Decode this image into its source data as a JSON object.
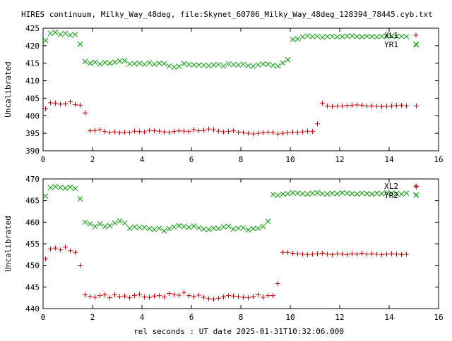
{
  "title": "HIRES continuum, Milky_Way_48deg, file:Skynet_60706_Milky_Way_48deg_128394_78445.cyb.txt",
  "xlabel": "rel seconds : UT date 2025-01-31T10:32:06.000",
  "colors": {
    "series1": "#cc0000",
    "series2": "#009900"
  },
  "chart_data": [
    {
      "type": "scatter",
      "ylabel": "Uncalibrated",
      "xlim": [
        0,
        16
      ],
      "ylim": [
        390,
        425
      ],
      "xticks": [
        "0",
        "2",
        "4",
        "6",
        "8",
        "10",
        "12",
        "14",
        "16"
      ],
      "yticks": [
        "390",
        "395",
        "400",
        "405",
        "410",
        "415",
        "420",
        "425"
      ],
      "legend_position": "top-right",
      "x": [
        0.1,
        0.3,
        0.5,
        0.7,
        0.9,
        1.1,
        1.3,
        1.5,
        1.7,
        1.9,
        2.1,
        2.3,
        2.5,
        2.7,
        2.9,
        3.1,
        3.3,
        3.5,
        3.7,
        3.9,
        4.1,
        4.3,
        4.5,
        4.7,
        4.9,
        5.1,
        5.3,
        5.5,
        5.7,
        5.9,
        6.1,
        6.3,
        6.5,
        6.7,
        6.9,
        7.1,
        7.3,
        7.5,
        7.7,
        7.9,
        8.1,
        8.3,
        8.5,
        8.7,
        8.9,
        9.1,
        9.3,
        9.5,
        9.7,
        9.9,
        10.1,
        10.3,
        10.5,
        10.7,
        10.9,
        11.1,
        11.3,
        11.5,
        11.7,
        11.9,
        12.1,
        12.3,
        12.5,
        12.7,
        12.9,
        13.1,
        13.3,
        13.5,
        13.7,
        13.9,
        14.1,
        14.3,
        14.5,
        14.7,
        15.1
      ],
      "series": [
        {
          "name": "XL1",
          "marker": "plus",
          "values": [
            402.0,
            403.7,
            403.6,
            403.3,
            403.4,
            404.0,
            403.2,
            403.0,
            400.8,
            395.7,
            395.8,
            396.0,
            395.5,
            395.2,
            395.4,
            395.1,
            395.3,
            395.2,
            395.6,
            395.5,
            395.4,
            395.8,
            395.7,
            395.6,
            395.4,
            395.3,
            395.5,
            395.7,
            395.6,
            395.5,
            396.0,
            395.7,
            395.8,
            396.2,
            396.0,
            395.6,
            395.4,
            395.5,
            395.7,
            395.3,
            395.2,
            395.0,
            394.8,
            395.0,
            395.1,
            395.3,
            395.2,
            394.8,
            395.0,
            395.1,
            395.3,
            395.2,
            395.4,
            395.6,
            395.5,
            397.7,
            403.6,
            402.8,
            402.6,
            402.7,
            402.8,
            402.9,
            403.0,
            403.1,
            403.0,
            402.8,
            402.8,
            402.7,
            402.6,
            402.7,
            402.8,
            402.9,
            403.0,
            402.8,
            402.8
          ]
        },
        {
          "name": "YR1",
          "marker": "cross",
          "values": [
            421.5,
            423.5,
            423.8,
            423.2,
            423.5,
            423.0,
            423.2,
            420.4,
            415.5,
            415.0,
            415.3,
            414.8,
            415.2,
            415.0,
            415.3,
            415.6,
            415.7,
            414.8,
            414.9,
            415.0,
            414.7,
            415.1,
            414.7,
            415.0,
            414.9,
            414.2,
            413.9,
            414.1,
            414.9,
            414.6,
            414.5,
            414.5,
            414.4,
            414.3,
            414.5,
            414.6,
            414.2,
            414.8,
            414.6,
            414.5,
            414.7,
            414.3,
            414.1,
            414.5,
            414.8,
            414.7,
            414.4,
            414.2,
            415.1,
            416.0,
            421.8,
            421.9,
            422.5,
            422.8,
            422.6,
            422.7,
            422.4,
            422.6,
            422.7,
            422.5,
            422.6,
            422.7,
            422.8,
            422.6,
            422.5,
            422.7,
            422.6,
            422.5,
            422.7,
            422.6,
            422.8,
            422.6,
            422.7,
            422.6,
            420.3
          ]
        }
      ]
    },
    {
      "type": "scatter",
      "ylabel": "Uncalibrated",
      "xlim": [
        0,
        16
      ],
      "ylim": [
        440,
        470
      ],
      "xticks": [
        "0",
        "2",
        "4",
        "6",
        "8",
        "10",
        "12",
        "14",
        "16"
      ],
      "yticks": [
        "440",
        "445",
        "450",
        "455",
        "460",
        "465",
        "470"
      ],
      "legend_position": "top-right",
      "x": [
        0.1,
        0.3,
        0.5,
        0.7,
        0.9,
        1.1,
        1.3,
        1.5,
        1.7,
        1.9,
        2.1,
        2.3,
        2.5,
        2.7,
        2.9,
        3.1,
        3.3,
        3.5,
        3.7,
        3.9,
        4.1,
        4.3,
        4.5,
        4.7,
        4.9,
        5.1,
        5.3,
        5.5,
        5.7,
        5.9,
        6.1,
        6.3,
        6.5,
        6.7,
        6.9,
        7.1,
        7.3,
        7.5,
        7.7,
        7.9,
        8.1,
        8.3,
        8.5,
        8.7,
        8.9,
        9.1,
        9.3,
        9.5,
        9.7,
        9.9,
        10.1,
        10.3,
        10.5,
        10.7,
        10.9,
        11.1,
        11.3,
        11.5,
        11.7,
        11.9,
        12.1,
        12.3,
        12.5,
        12.7,
        12.9,
        13.1,
        13.3,
        13.5,
        13.7,
        13.9,
        14.1,
        14.3,
        14.5,
        14.7,
        15.1
      ],
      "series": [
        {
          "name": "XL2",
          "marker": "plus",
          "values": [
            451.5,
            453.8,
            454.0,
            453.6,
            454.2,
            453.4,
            453.0,
            450.0,
            443.2,
            442.8,
            442.6,
            443.0,
            443.2,
            442.5,
            443.2,
            442.8,
            442.9,
            442.5,
            443.0,
            443.3,
            442.7,
            442.6,
            442.9,
            443.0,
            442.7,
            443.5,
            443.3,
            443.1,
            443.7,
            443.0,
            442.8,
            443.1,
            442.6,
            442.3,
            442.2,
            442.4,
            442.7,
            443.0,
            442.9,
            442.8,
            442.6,
            442.5,
            442.8,
            443.2,
            442.6,
            443.0,
            443.0,
            445.8,
            453.0,
            453.0,
            452.8,
            452.7,
            452.6,
            452.5,
            452.6,
            452.7,
            452.8,
            452.6,
            452.5,
            452.7,
            452.6,
            452.5,
            452.7,
            452.6,
            452.8,
            452.6,
            452.7,
            452.6,
            452.5,
            452.6,
            452.7,
            452.6,
            452.5,
            452.6,
            468.2
          ]
        },
        {
          "name": "YR2",
          "marker": "cross",
          "values": [
            466.0,
            468.0,
            468.2,
            468.0,
            467.9,
            468.1,
            467.8,
            465.4,
            460.0,
            459.6,
            459.0,
            459.6,
            459.0,
            459.2,
            459.8,
            460.3,
            459.8,
            458.6,
            458.9,
            458.8,
            458.8,
            458.5,
            458.3,
            458.6,
            458.0,
            458.5,
            458.9,
            459.2,
            459.0,
            458.8,
            459.1,
            458.7,
            458.4,
            458.3,
            458.6,
            458.5,
            458.9,
            459.0,
            458.4,
            458.6,
            458.7,
            458.2,
            458.5,
            458.6,
            459.0,
            460.2,
            466.4,
            466.2,
            466.5,
            466.6,
            466.8,
            466.7,
            466.6,
            466.5,
            466.7,
            466.8,
            466.6,
            466.5,
            466.7,
            466.6,
            466.8,
            466.7,
            466.6,
            466.5,
            466.7,
            466.6,
            466.5,
            466.7,
            466.6,
            466.8,
            466.7,
            466.6,
            466.5,
            466.7,
            466.3
          ]
        }
      ]
    }
  ]
}
